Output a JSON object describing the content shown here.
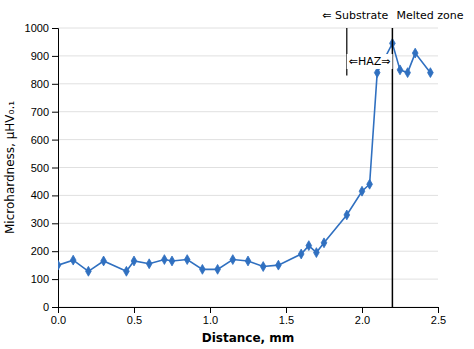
{
  "chart_data": {
    "type": "line",
    "x": [
      0.0,
      0.1,
      0.2,
      0.3,
      0.45,
      0.5,
      0.6,
      0.7,
      0.75,
      0.85,
      0.95,
      1.05,
      1.15,
      1.25,
      1.35,
      1.45,
      1.6,
      1.65,
      1.7,
      1.75,
      1.9,
      2.0,
      2.05,
      2.1,
      2.2,
      2.25,
      2.3,
      2.35,
      2.45
    ],
    "values": [
      150,
      168,
      128,
      165,
      128,
      165,
      155,
      170,
      165,
      170,
      135,
      135,
      170,
      165,
      145,
      150,
      190,
      220,
      195,
      230,
      330,
      415,
      440,
      840,
      945,
      850,
      840,
      910,
      840
    ],
    "color": "#3070c0",
    "marker": "diamond",
    "xlabel": "Distance, mm",
    "ylabel": "Microhardness, μHV₀.₁",
    "xlim": [
      0,
      2.5
    ],
    "ylim": [
      0,
      1000
    ],
    "xticks": [
      {
        "value": 0,
        "label": "0.0"
      },
      0.5,
      {
        "value": 1.0,
        "label": "1.0"
      },
      1.5,
      {
        "value": 2.0,
        "label": "2.0"
      },
      2.5
    ],
    "yticks": [
      0,
      100,
      200,
      300,
      400,
      500,
      600,
      700,
      800,
      900,
      1000
    ],
    "grid": "y",
    "annotations": [
      {
        "type": "vline",
        "x": 2.2
      },
      {
        "type": "segment",
        "x": 1.9,
        "y": [
          830,
          1000
        ]
      },
      {
        "type": "arrow",
        "text": "⇐HAZ⇒",
        "x": [
          1.9,
          2.2
        ],
        "y": 880
      },
      {
        "type": "text",
        "text": "⇐ Substrate",
        "x": 2.2,
        "anchor": "end"
      },
      {
        "type": "text",
        "text": "Melted zone",
        "x": 2.2,
        "anchor": "start"
      }
    ]
  }
}
